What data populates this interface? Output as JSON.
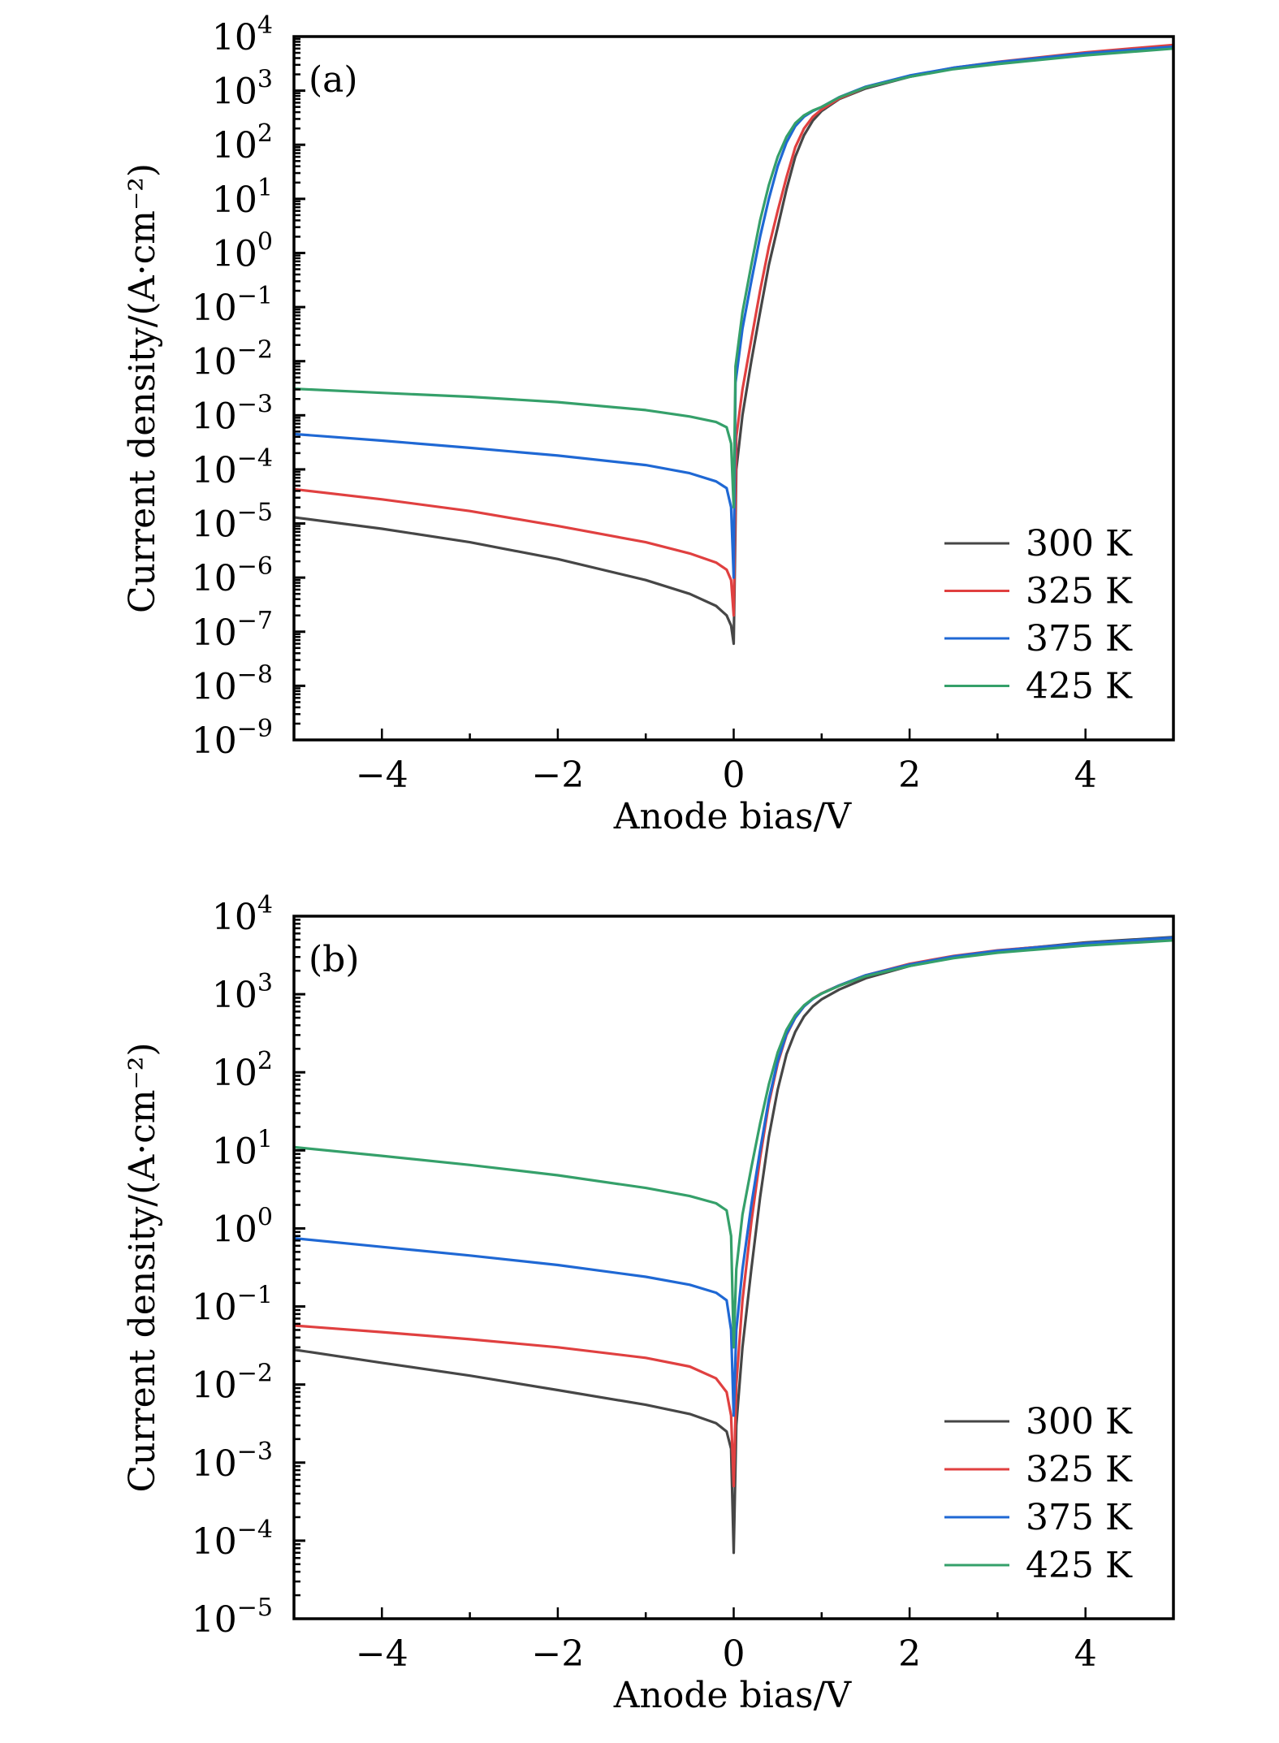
{
  "chart_data": [
    {
      "type": "line",
      "panel_label": "(a)",
      "xlabel": "Anode bias/V",
      "ylabel": "Current density/(A·cm⁻²)",
      "yscale": "log",
      "xlim": [
        -5,
        5
      ],
      "ylim_exp": [
        -9,
        4
      ],
      "x_ticks": [
        -4,
        -2,
        0,
        2,
        4
      ],
      "x_tick_labels": [
        "−4",
        "−2",
        "0",
        "2",
        "4"
      ],
      "y_tick_exponents": [
        4,
        3,
        2,
        1,
        0,
        -1,
        -2,
        -3,
        -4,
        -5,
        -6,
        -7,
        -8,
        -9
      ],
      "y_tick_exponent_labels": [
        "4",
        "3",
        "2",
        "1",
        "0",
        "−1",
        "−2",
        "−3",
        "−4",
        "−5",
        "−6",
        "−7",
        "−8",
        "−9"
      ],
      "y_tick_base": "10",
      "legend_position": "bottom-right",
      "series": [
        {
          "name": "300 K",
          "color": "#464646",
          "x": [
            -5,
            -4,
            -3,
            -2,
            -1,
            -0.5,
            -0.2,
            -0.08,
            -0.03,
            0,
            0.03,
            0.1,
            0.2,
            0.3,
            0.4,
            0.5,
            0.6,
            0.7,
            0.8,
            0.9,
            1.0,
            1.2,
            1.5,
            2,
            2.5,
            3,
            4,
            5
          ],
          "y": [
            1.3e-05,
            8e-06,
            4.5e-06,
            2.2e-06,
            9e-07,
            5e-07,
            3e-07,
            2e-07,
            1.3e-07,
            6e-08,
            0.0001,
            0.001,
            0.01,
            0.08,
            0.6,
            3,
            15,
            60,
            150,
            280,
            420,
            700,
            1100,
            1800,
            2600,
            3300,
            5000,
            6800
          ]
        },
        {
          "name": "325 K",
          "color": "#e04040",
          "x": [
            -5,
            -4,
            -3,
            -2,
            -1,
            -0.5,
            -0.2,
            -0.08,
            -0.03,
            0,
            0.03,
            0.1,
            0.2,
            0.3,
            0.4,
            0.5,
            0.6,
            0.7,
            0.8,
            0.9,
            1.0,
            1.2,
            1.5,
            2,
            2.5,
            3,
            4,
            5
          ],
          "y": [
            4.3e-05,
            2.8e-05,
            1.7e-05,
            9e-06,
            4.5e-06,
            2.8e-06,
            1.9e-06,
            1.4e-06,
            9e-07,
            2e-07,
            0.0004,
            0.003,
            0.025,
            0.2,
            1.3,
            6,
            25,
            90,
            200,
            330,
            450,
            720,
            1150,
            1850,
            2650,
            3400,
            5100,
            7000
          ]
        },
        {
          "name": "375 K",
          "color": "#1f68d4",
          "x": [
            -5,
            -4,
            -3,
            -2,
            -1,
            -0.5,
            -0.2,
            -0.08,
            -0.03,
            0,
            0.02,
            0.1,
            0.2,
            0.3,
            0.4,
            0.5,
            0.6,
            0.7,
            0.8,
            0.9,
            1.0,
            1.2,
            1.5,
            2,
            2.5,
            3,
            4,
            5
          ],
          "y": [
            0.00045,
            0.00034,
            0.00025,
            0.00018,
            0.00012,
            8.5e-05,
            6e-05,
            4.5e-05,
            2e-05,
            1e-06,
            0.004,
            0.04,
            0.3,
            2,
            10,
            40,
            110,
            220,
            330,
            420,
            500,
            760,
            1180,
            1900,
            2650,
            3350,
            4900,
            6500
          ]
        },
        {
          "name": "425 K",
          "color": "#35a06a",
          "x": [
            -5,
            -4,
            -3,
            -2,
            -1,
            -0.5,
            -0.2,
            -0.08,
            -0.03,
            0,
            0.02,
            0.1,
            0.2,
            0.3,
            0.4,
            0.5,
            0.6,
            0.7,
            0.8,
            0.9,
            1.0,
            1.2,
            1.5,
            2,
            2.5,
            3,
            4,
            5
          ],
          "y": [
            0.0031,
            0.0026,
            0.0022,
            0.00175,
            0.00125,
            0.00095,
            0.00075,
            0.0006,
            0.0003,
            2e-05,
            0.008,
            0.08,
            0.6,
            4,
            18,
            60,
            140,
            250,
            350,
            430,
            500,
            750,
            1150,
            1800,
            2500,
            3100,
            4500,
            6000
          ]
        }
      ]
    },
    {
      "type": "line",
      "panel_label": "(b)",
      "xlabel": "Anode bias/V",
      "ylabel": "Current density/(A·cm⁻²)",
      "yscale": "log",
      "xlim": [
        -5,
        5
      ],
      "ylim_exp": [
        -5,
        4
      ],
      "x_ticks": [
        -4,
        -2,
        0,
        2,
        4
      ],
      "x_tick_labels": [
        "−4",
        "−2",
        "0",
        "2",
        "4"
      ],
      "y_tick_exponents": [
        4,
        3,
        2,
        1,
        0,
        -1,
        -2,
        -3,
        -4,
        -5
      ],
      "y_tick_exponent_labels": [
        "4",
        "3",
        "2",
        "1",
        "0",
        "−1",
        "−2",
        "−3",
        "−4",
        "−5"
      ],
      "y_tick_base": "10",
      "legend_position": "bottom-right",
      "series": [
        {
          "name": "300 K",
          "color": "#464646",
          "x": [
            -5,
            -4,
            -3,
            -2,
            -1,
            -0.5,
            -0.2,
            -0.08,
            -0.03,
            0,
            0.03,
            0.1,
            0.2,
            0.3,
            0.4,
            0.5,
            0.6,
            0.7,
            0.8,
            0.9,
            1.0,
            1.2,
            1.5,
            2,
            2.5,
            3,
            4,
            5
          ],
          "y": [
            0.028,
            0.019,
            0.013,
            0.0085,
            0.0055,
            0.0042,
            0.0032,
            0.0025,
            0.0015,
            7e-05,
            0.003,
            0.03,
            0.3,
            2.5,
            15,
            60,
            170,
            330,
            520,
            700,
            860,
            1150,
            1600,
            2300,
            3000,
            3600,
            4600,
            5400
          ]
        },
        {
          "name": "325 K",
          "color": "#e04040",
          "x": [
            -5,
            -4,
            -3,
            -2,
            -1,
            -0.5,
            -0.2,
            -0.08,
            -0.03,
            0,
            0.03,
            0.1,
            0.2,
            0.3,
            0.4,
            0.5,
            0.6,
            0.7,
            0.8,
            0.9,
            1.0,
            1.2,
            1.5,
            2,
            2.5,
            3,
            4,
            5
          ],
          "y": [
            0.057,
            0.047,
            0.038,
            0.03,
            0.022,
            0.017,
            0.012,
            0.008,
            0.004,
            0.0005,
            0.01,
            0.12,
            1.2,
            8,
            40,
            130,
            300,
            500,
            700,
            880,
            1030,
            1300,
            1750,
            2450,
            3100,
            3650,
            4500,
            5200
          ]
        },
        {
          "name": "375 K",
          "color": "#1f68d4",
          "x": [
            -5,
            -4,
            -3,
            -2,
            -1,
            -0.5,
            -0.2,
            -0.08,
            -0.03,
            0,
            0.03,
            0.1,
            0.2,
            0.3,
            0.4,
            0.5,
            0.6,
            0.7,
            0.8,
            0.9,
            1.0,
            1.2,
            1.5,
            2,
            2.5,
            3,
            4,
            5
          ],
          "y": [
            0.75,
            0.58,
            0.45,
            0.34,
            0.24,
            0.19,
            0.15,
            0.12,
            0.05,
            0.004,
            0.05,
            0.3,
            2,
            10,
            45,
            140,
            310,
            500,
            700,
            870,
            1020,
            1300,
            1750,
            2400,
            3050,
            3600,
            4500,
            5300
          ]
        },
        {
          "name": "425 K",
          "color": "#35a06a",
          "x": [
            -5,
            -4,
            -3,
            -2,
            -1,
            -0.5,
            -0.2,
            -0.08,
            -0.03,
            0,
            0.03,
            0.1,
            0.2,
            0.3,
            0.4,
            0.5,
            0.6,
            0.7,
            0.8,
            0.9,
            1.0,
            1.2,
            1.5,
            2,
            2.5,
            3,
            4,
            5
          ],
          "y": [
            11,
            8.5,
            6.5,
            4.8,
            3.3,
            2.6,
            2.1,
            1.7,
            0.8,
            0.03,
            0.3,
            1.5,
            6,
            22,
            70,
            180,
            350,
            540,
            720,
            880,
            1020,
            1280,
            1700,
            2300,
            2900,
            3400,
            4200,
            4900
          ]
        }
      ]
    }
  ]
}
